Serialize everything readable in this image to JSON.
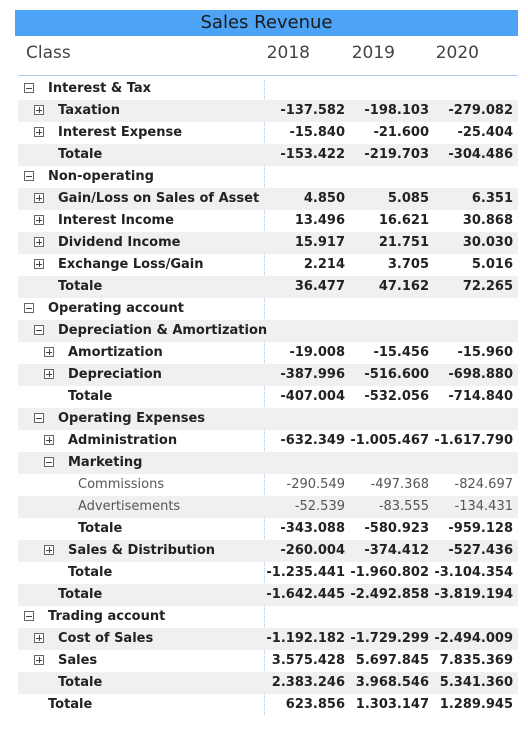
{
  "header": {
    "title": "Sales Revenue",
    "class_label": "Class",
    "years": [
      "2018",
      "2019",
      "2020"
    ]
  },
  "rows": [
    {
      "label": "Interest & Tax",
      "level": 0,
      "toggle": "minus",
      "values": [
        "",
        "",
        ""
      ],
      "style": "bold",
      "alt": false
    },
    {
      "label": "Taxation",
      "level": 1,
      "toggle": "plus",
      "values": [
        "-137.582",
        "-198.103",
        "-279.082"
      ],
      "style": "bold",
      "alt": true
    },
    {
      "label": "Interest Expense",
      "level": 1,
      "toggle": "plus",
      "values": [
        "-15.840",
        "-21.600",
        "-25.404"
      ],
      "style": "bold",
      "alt": false
    },
    {
      "label": "Totale",
      "level": 1,
      "toggle": "none",
      "values": [
        "-153.422",
        "-219.703",
        "-304.486"
      ],
      "style": "bold",
      "alt": true
    },
    {
      "label": "Non-operating",
      "level": 0,
      "toggle": "minus",
      "values": [
        "",
        "",
        ""
      ],
      "style": "bold",
      "alt": false
    },
    {
      "label": "Gain/Loss on Sales of Asset",
      "level": 1,
      "toggle": "plus",
      "values": [
        "4.850",
        "5.085",
        "6.351"
      ],
      "style": "bold",
      "alt": true
    },
    {
      "label": "Interest Income",
      "level": 1,
      "toggle": "plus",
      "values": [
        "13.496",
        "16.621",
        "30.868"
      ],
      "style": "bold",
      "alt": false
    },
    {
      "label": "Dividend Income",
      "level": 1,
      "toggle": "plus",
      "values": [
        "15.917",
        "21.751",
        "30.030"
      ],
      "style": "bold",
      "alt": true
    },
    {
      "label": "Exchange Loss/Gain",
      "level": 1,
      "toggle": "plus",
      "values": [
        "2.214",
        "3.705",
        "5.016"
      ],
      "style": "bold",
      "alt": false
    },
    {
      "label": "Totale",
      "level": 1,
      "toggle": "none",
      "values": [
        "36.477",
        "47.162",
        "72.265"
      ],
      "style": "bold",
      "alt": true
    },
    {
      "label": "Operating account",
      "level": 0,
      "toggle": "minus",
      "values": [
        "",
        "",
        ""
      ],
      "style": "bold",
      "alt": false
    },
    {
      "label": "Depreciation & Amortization",
      "level": 1,
      "toggle": "minus",
      "values": [
        "",
        "",
        ""
      ],
      "style": "bold",
      "alt": true
    },
    {
      "label": "Amortization",
      "level": 2,
      "toggle": "plus",
      "values": [
        "-19.008",
        "-15.456",
        "-15.960"
      ],
      "style": "bold",
      "alt": false
    },
    {
      "label": "Depreciation",
      "level": 2,
      "toggle": "plus",
      "values": [
        "-387.996",
        "-516.600",
        "-698.880"
      ],
      "style": "bold",
      "alt": true
    },
    {
      "label": "Totale",
      "level": 2,
      "toggle": "none",
      "values": [
        "-407.004",
        "-532.056",
        "-714.840"
      ],
      "style": "bold",
      "alt": false
    },
    {
      "label": "Operating Expenses",
      "level": 1,
      "toggle": "minus",
      "values": [
        "",
        "",
        ""
      ],
      "style": "bold",
      "alt": true
    },
    {
      "label": "Administration",
      "level": 2,
      "toggle": "plus",
      "values": [
        "-632.349",
        "-1.005.467",
        "-1.617.790"
      ],
      "style": "bold",
      "alt": false
    },
    {
      "label": "Marketing",
      "level": 2,
      "toggle": "minus",
      "values": [
        "",
        "",
        ""
      ],
      "style": "bold",
      "alt": true
    },
    {
      "label": "Commissions",
      "level": 3,
      "toggle": "none",
      "values": [
        "-290.549",
        "-497.368",
        "-824.697"
      ],
      "style": "plain",
      "alt": false
    },
    {
      "label": "Advertisements",
      "level": 3,
      "toggle": "none",
      "values": [
        "-52.539",
        "-83.555",
        "-134.431"
      ],
      "style": "plain",
      "alt": true
    },
    {
      "label": "Totale",
      "level": 3,
      "toggle": "none",
      "values": [
        "-343.088",
        "-580.923",
        "-959.128"
      ],
      "style": "bold",
      "alt": false
    },
    {
      "label": "Sales & Distribution",
      "level": 2,
      "toggle": "plus",
      "values": [
        "-260.004",
        "-374.412",
        "-527.436"
      ],
      "style": "bold",
      "alt": true
    },
    {
      "label": "Totale",
      "level": 2,
      "toggle": "none",
      "values": [
        "-1.235.441",
        "-1.960.802",
        "-3.104.354"
      ],
      "style": "bold",
      "alt": false
    },
    {
      "label": "Totale",
      "level": 1,
      "toggle": "none",
      "values": [
        "-1.642.445",
        "-2.492.858",
        "-3.819.194"
      ],
      "style": "bold",
      "alt": true
    },
    {
      "label": "Trading account",
      "level": 0,
      "toggle": "minus",
      "values": [
        "",
        "",
        ""
      ],
      "style": "bold",
      "alt": false
    },
    {
      "label": "Cost of Sales",
      "level": 1,
      "toggle": "plus",
      "values": [
        "-1.192.182",
        "-1.729.299",
        "-2.494.009"
      ],
      "style": "bold",
      "alt": true
    },
    {
      "label": "Sales",
      "level": 1,
      "toggle": "plus",
      "values": [
        "3.575.428",
        "5.697.845",
        "7.835.369"
      ],
      "style": "bold",
      "alt": false
    },
    {
      "label": "Totale",
      "level": 1,
      "toggle": "none",
      "values": [
        "2.383.246",
        "3.968.546",
        "5.341.360"
      ],
      "style": "bold",
      "alt": true
    },
    {
      "label": "Totale",
      "level": 0,
      "toggle": "none",
      "values": [
        "623.856",
        "1.303.147",
        "1.289.945"
      ],
      "style": "bold",
      "alt": false
    }
  ]
}
